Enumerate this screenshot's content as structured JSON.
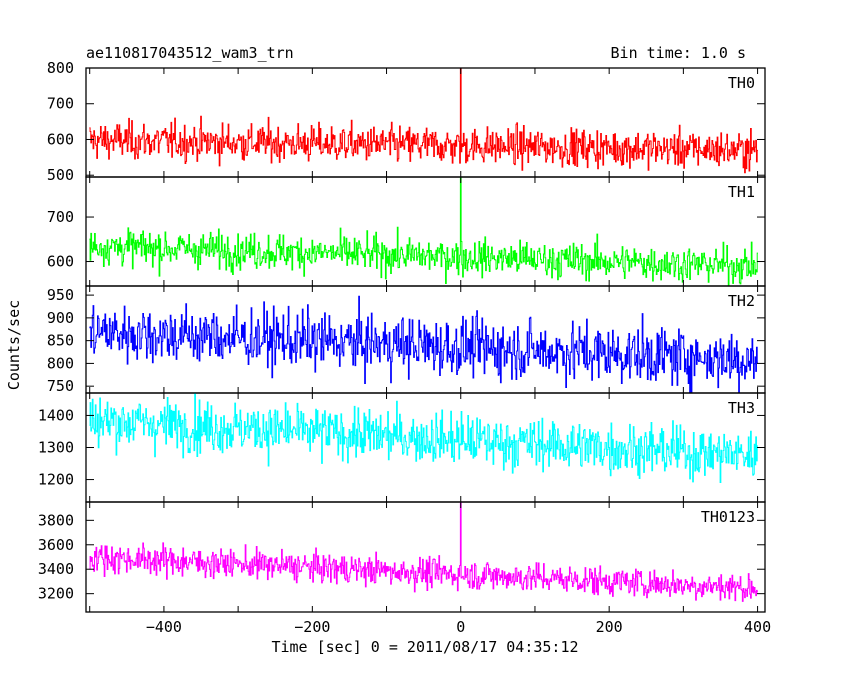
{
  "chart_data": {
    "type": "line",
    "title": "ae110817043512_wam3_trn",
    "subtitle": "Bin time: 1.0 s",
    "xlabel": "Time [sec] 0 = 2011/08/17 04:35:12",
    "ylabel": "Counts/sec",
    "xlim": [
      -505,
      410
    ],
    "x_ticks": [
      -400,
      -200,
      0,
      200,
      400
    ],
    "x_tick_labels": [
      "−400",
      "−200",
      "0",
      "200",
      "400"
    ],
    "grid": false,
    "panels": [
      {
        "name": "TH0",
        "color": "#ff0000",
        "ylim": [
          495,
          800
        ],
        "y_ticks": [
          500,
          600,
          700,
          800
        ],
        "y_tick_labels": [
          "500",
          "600",
          "700",
          "800"
        ],
        "x_start": -500,
        "x_end": 400,
        "bin": 1.0,
        "mean_start": 598,
        "mean_end": 570,
        "noise_sd": 26,
        "peak": {
          "x": 0,
          "value": 800
        }
      },
      {
        "name": "TH1",
        "color": "#00ff00",
        "ylim": [
          545,
          790
        ],
        "y_ticks": [
          600,
          700
        ],
        "y_tick_labels": [
          "600",
          "700"
        ],
        "x_start": -500,
        "x_end": 400,
        "bin": 1.0,
        "mean_start": 635,
        "mean_end": 590,
        "noise_sd": 20,
        "peak": {
          "x": 0,
          "value": 790
        }
      },
      {
        "name": "TH2",
        "color": "#0000ff",
        "ylim": [
          735,
          970
        ],
        "y_ticks": [
          750,
          800,
          850,
          900,
          950
        ],
        "y_tick_labels": [
          "750",
          "800",
          "850",
          "900",
          "950"
        ],
        "x_start": -500,
        "x_end": 400,
        "bin": 1.0,
        "mean_start": 870,
        "mean_end": 808,
        "noise_sd": 32,
        "peak": null
      },
      {
        "name": "TH3",
        "color": "#00ffff",
        "ylim": [
          1130,
          1470
        ],
        "y_ticks": [
          1200,
          1300,
          1400
        ],
        "y_tick_labels": [
          "1200",
          "1300",
          "1400"
        ],
        "x_start": -500,
        "x_end": 400,
        "bin": 1.0,
        "mean_start": 1385,
        "mean_end": 1275,
        "noise_sd": 40,
        "peak": null
      },
      {
        "name": "TH0123",
        "color": "#ff00ff",
        "ylim": [
          3050,
          3950
        ],
        "y_ticks": [
          3200,
          3400,
          3600,
          3800
        ],
        "y_tick_labels": [
          "3200",
          "3400",
          "3600",
          "3800"
        ],
        "x_start": -500,
        "x_end": 400,
        "bin": 1.0,
        "mean_start": 3500,
        "mean_end": 3245,
        "noise_sd": 60,
        "peak": {
          "x": 0,
          "value": 3950
        }
      }
    ]
  }
}
